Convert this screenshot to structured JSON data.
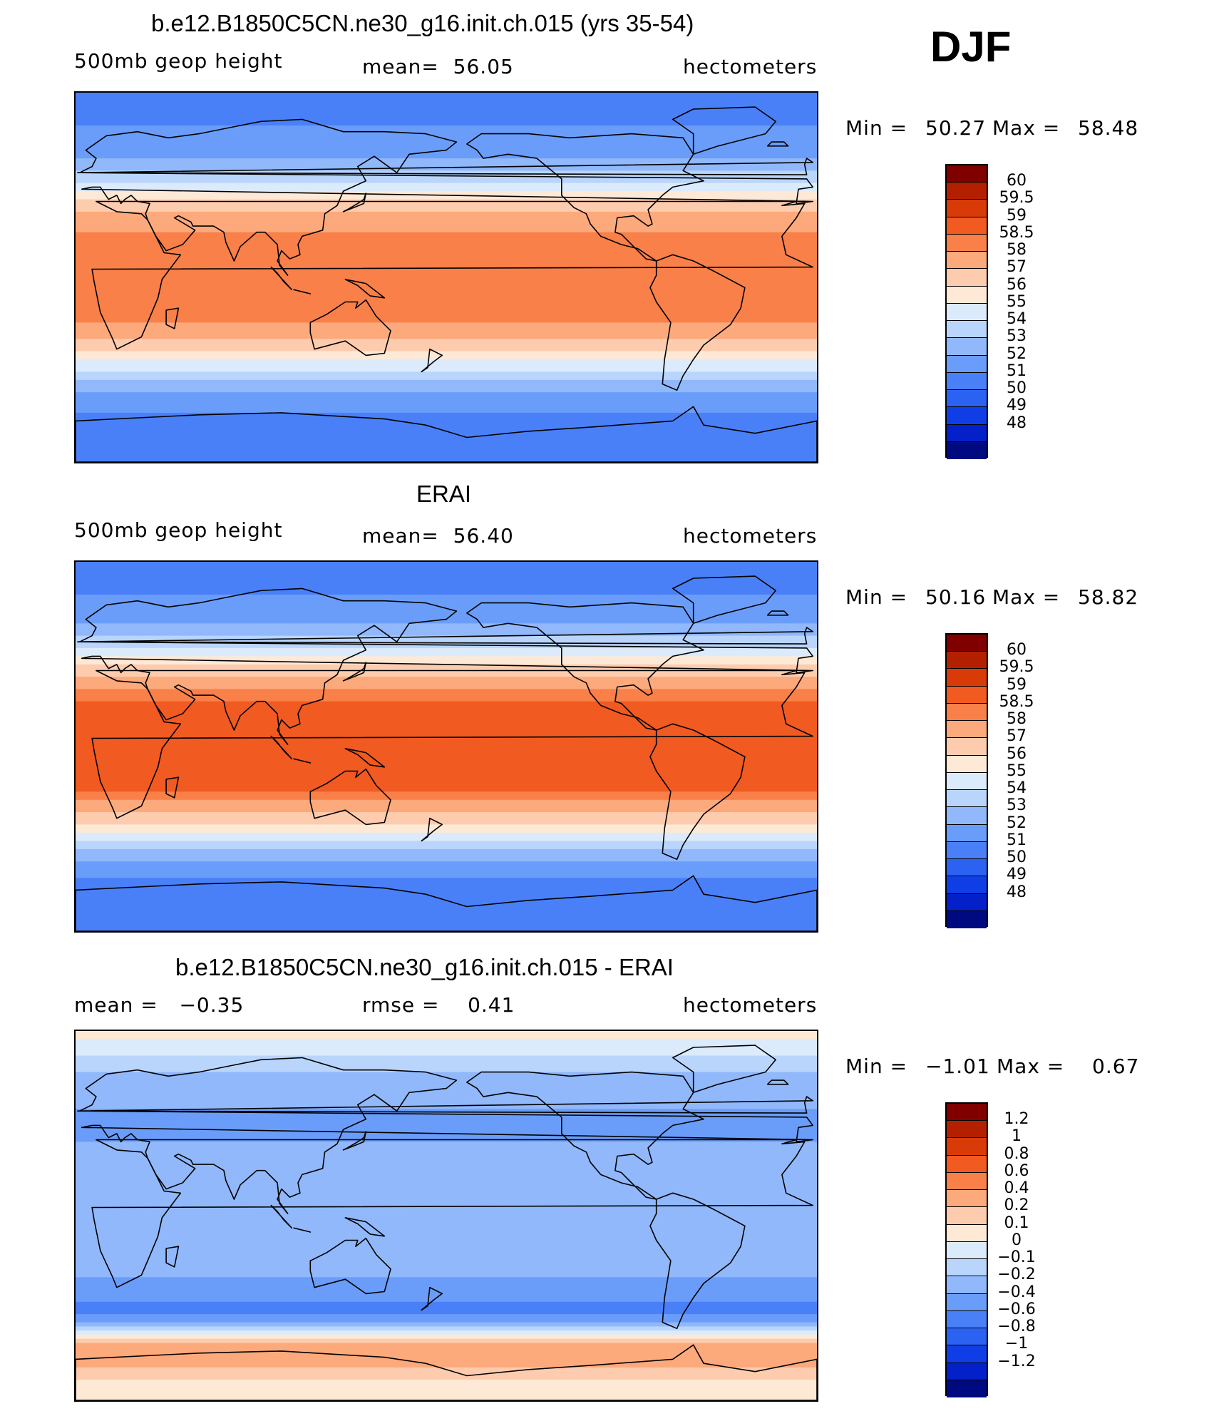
{
  "season_label": "DJF",
  "chart_data": [
    {
      "type": "heatmap",
      "title": "b.e12.B1850C5CN.ne30_g16.init.ch.015 (yrs 35-54)",
      "left_label": "500mb geop height",
      "center_label": "mean=  56.05",
      "right_label": "hectometers",
      "min_label": "Min =",
      "min_value": "50.27",
      "max_label": "Max =",
      "max_value": "58.48",
      "colorbar_labels": [
        "60",
        "59.5",
        "59",
        "58.5",
        "58",
        "57",
        "56",
        "55",
        "54",
        "53",
        "52",
        "51",
        "50",
        "49",
        "48"
      ],
      "colorbar_colors": [
        "#800000",
        "#b22000",
        "#d83a08",
        "#f15a20",
        "#f98048",
        "#fca97c",
        "#fdccae",
        "#fde9d6",
        "#dcebfb",
        "#b9d5fb",
        "#90b8fb",
        "#6a9df9",
        "#4a80f7",
        "#2b62f2",
        "#103ee6",
        "#0420c8",
        "#000a80"
      ],
      "ylim": [
        -90,
        90
      ],
      "xlim": [
        0,
        360
      ],
      "lat_profile": [
        {
          "lat": 90,
          "value": 50.6
        },
        {
          "lat": 75,
          "value": 50.9
        },
        {
          "lat": 60,
          "value": 51.8
        },
        {
          "lat": 50,
          "value": 53.3
        },
        {
          "lat": 40,
          "value": 55.4
        },
        {
          "lat": 30,
          "value": 57.4
        },
        {
          "lat": 20,
          "value": 58.2
        },
        {
          "lat": 0,
          "value": 58.3
        },
        {
          "lat": -20,
          "value": 58.2
        },
        {
          "lat": -30,
          "value": 57.2
        },
        {
          "lat": -40,
          "value": 55.1
        },
        {
          "lat": -50,
          "value": 52.9
        },
        {
          "lat": -60,
          "value": 51.2
        },
        {
          "lat": -75,
          "value": 50.7
        },
        {
          "lat": -90,
          "value": 50.5
        }
      ]
    },
    {
      "type": "heatmap",
      "title": "ERAI",
      "left_label": "500mb geop height",
      "center_label": "mean=  56.40",
      "right_label": "hectometers",
      "min_label": "Min =",
      "min_value": "50.16",
      "max_label": "Max =",
      "max_value": "58.82",
      "colorbar_labels": [
        "60",
        "59.5",
        "59",
        "58.5",
        "58",
        "57",
        "56",
        "55",
        "54",
        "53",
        "52",
        "51",
        "50",
        "49",
        "48"
      ],
      "colorbar_colors": [
        "#800000",
        "#b22000",
        "#d83a08",
        "#f15a20",
        "#f98048",
        "#fca97c",
        "#fdccae",
        "#fde9d6",
        "#dcebfb",
        "#b9d5fb",
        "#90b8fb",
        "#6a9df9",
        "#4a80f7",
        "#2b62f2",
        "#103ee6",
        "#0420c8",
        "#000a80"
      ],
      "ylim": [
        -90,
        90
      ],
      "xlim": [
        0,
        360
      ],
      "lat_profile": [
        {
          "lat": 90,
          "value": 50.6
        },
        {
          "lat": 75,
          "value": 50.9
        },
        {
          "lat": 60,
          "value": 51.9
        },
        {
          "lat": 50,
          "value": 53.6
        },
        {
          "lat": 40,
          "value": 55.8
        },
        {
          "lat": 30,
          "value": 57.8
        },
        {
          "lat": 20,
          "value": 58.6
        },
        {
          "lat": 0,
          "value": 58.7
        },
        {
          "lat": -20,
          "value": 58.6
        },
        {
          "lat": -30,
          "value": 57.6
        },
        {
          "lat": -40,
          "value": 55.4
        },
        {
          "lat": -50,
          "value": 53.0
        },
        {
          "lat": -60,
          "value": 51.1
        },
        {
          "lat": -75,
          "value": 50.6
        },
        {
          "lat": -90,
          "value": 50.4
        }
      ]
    },
    {
      "type": "heatmap",
      "title": "b.e12.B1850C5CN.ne30_g16.init.ch.015 - ERAI",
      "left_label": "mean =   −0.35",
      "center_label": "rmse =    0.41",
      "right_label": "hectometers",
      "min_label": "Min =",
      "min_value": "−1.01",
      "max_label": "Max =",
      "max_value": "0.67",
      "colorbar_labels": [
        "1.2",
        "1",
        "0.8",
        "0.6",
        "0.4",
        "0.2",
        "0.1",
        "0",
        "−0.1",
        "−0.2",
        "−0.4",
        "−0.6",
        "−0.8",
        "−1",
        "−1.2"
      ],
      "colorbar_colors": [
        "#800000",
        "#b22000",
        "#d83a08",
        "#f15a20",
        "#f98048",
        "#fca97c",
        "#fdccae",
        "#fde9d6",
        "#dcebfb",
        "#b9d5fb",
        "#90b8fb",
        "#6a9df9",
        "#4a80f7",
        "#2b62f2",
        "#103ee6",
        "#0420c8",
        "#000a80"
      ],
      "ylim": [
        -90,
        90
      ],
      "xlim": [
        0,
        360
      ],
      "lat_profile": [
        {
          "lat": 90,
          "value": 0.05
        },
        {
          "lat": 75,
          "value": -0.15
        },
        {
          "lat": 60,
          "value": -0.3
        },
        {
          "lat": 45,
          "value": -0.5
        },
        {
          "lat": 30,
          "value": -0.35
        },
        {
          "lat": 15,
          "value": -0.3
        },
        {
          "lat": 0,
          "value": -0.25
        },
        {
          "lat": -20,
          "value": -0.3
        },
        {
          "lat": -35,
          "value": -0.45
        },
        {
          "lat": -45,
          "value": -0.7
        },
        {
          "lat": -52,
          "value": -0.4
        },
        {
          "lat": -60,
          "value": 0.15
        },
        {
          "lat": -68,
          "value": 0.3
        },
        {
          "lat": -80,
          "value": 0.1
        },
        {
          "lat": -90,
          "value": 0.0
        }
      ]
    }
  ]
}
